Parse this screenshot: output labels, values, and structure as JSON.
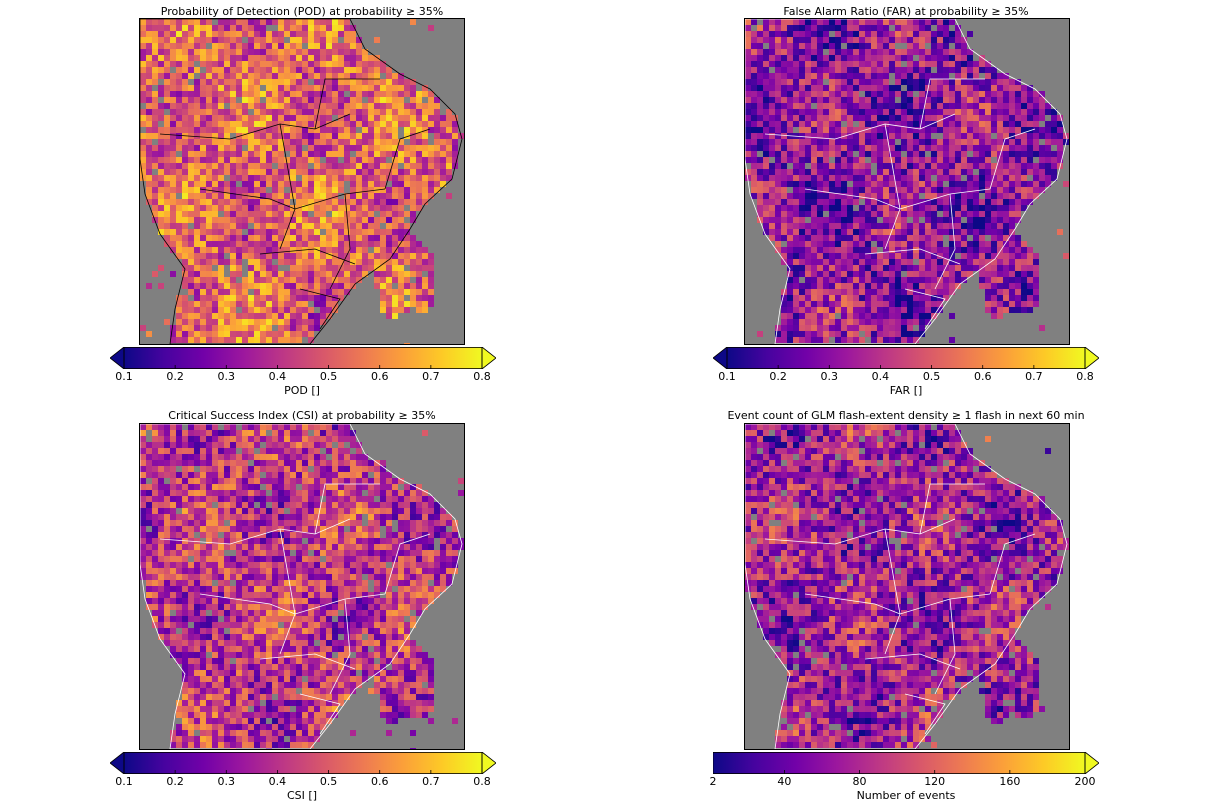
{
  "panels": [
    {
      "title": "Probability of Detection (POD) at probability ≥ 35%",
      "colorbar": {
        "label": "POD []",
        "ticks": [
          "0.1",
          "0.2",
          "0.3",
          "0.4",
          "0.5",
          "0.6",
          "0.7",
          "0.8"
        ],
        "range": [
          0.1,
          0.8
        ],
        "extend": "both",
        "colormap": "plasma"
      },
      "border_color": "#000000",
      "mean_level": 0.6
    },
    {
      "title": "False Alarm Ratio (FAR) at probability ≥ 35%",
      "colorbar": {
        "label": "FAR []",
        "ticks": [
          "0.1",
          "0.2",
          "0.3",
          "0.4",
          "0.5",
          "0.6",
          "0.7",
          "0.8"
        ],
        "range": [
          0.1,
          0.8
        ],
        "extend": "both",
        "colormap": "plasma"
      },
      "border_color": "#ffffff",
      "mean_level": 0.3
    },
    {
      "title": "Critical Success Index (CSI) at probability ≥ 35%",
      "colorbar": {
        "label": "CSI []",
        "ticks": [
          "0.1",
          "0.2",
          "0.3",
          "0.4",
          "0.5",
          "0.6",
          "0.7",
          "0.8"
        ],
        "range": [
          0.1,
          0.8
        ],
        "extend": "both",
        "colormap": "plasma"
      },
      "border_color": "#ffffff",
      "mean_level": 0.45
    },
    {
      "title": "Event count of GLM flash-extent density ≥ 1 flash in next 60 min",
      "colorbar": {
        "label": "Number of events",
        "ticks": [
          "2",
          "40",
          "80",
          "120",
          "160",
          "200"
        ],
        "range": [
          2,
          200
        ],
        "extend": "max",
        "colormap": "plasma"
      },
      "border_color": "#ffffff",
      "mean_level": 0.35
    }
  ],
  "colors": {
    "ocean": "#808080",
    "plasma_stops": [
      "#0d0887",
      "#46039f",
      "#7201a8",
      "#9c179e",
      "#bd3786",
      "#d8576b",
      "#ed7953",
      "#fb9f3a",
      "#fdca26",
      "#f0f921"
    ]
  }
}
